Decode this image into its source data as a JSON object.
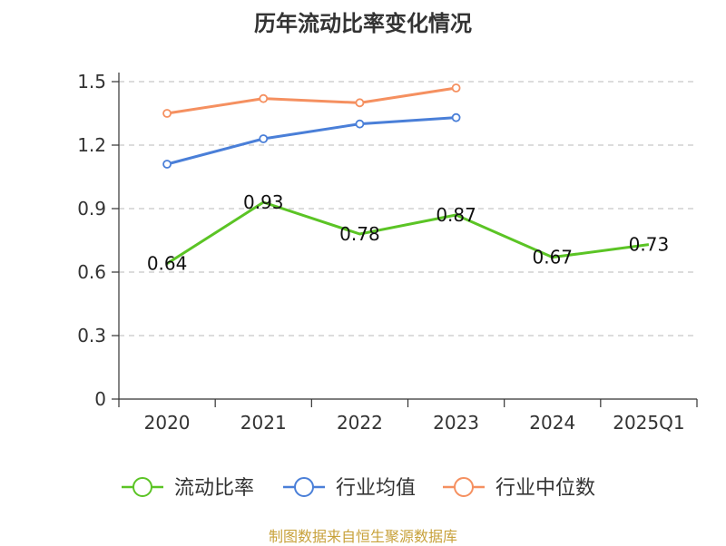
{
  "chart_data": {
    "type": "line",
    "title": "历年流动比率变化情况",
    "categories": [
      "2020",
      "2021",
      "2022",
      "2023",
      "2024",
      "2025Q1"
    ],
    "y_ticks": [
      "0",
      "0.3",
      "0.6",
      "0.9",
      "1.2",
      "1.5"
    ],
    "ylim": [
      0,
      1.5
    ],
    "grid": true,
    "legend_position": "bottom",
    "series": [
      {
        "name": "流动比率",
        "color": "#5bc425",
        "values": [
          0.64,
          0.93,
          0.78,
          0.87,
          0.67,
          0.73
        ],
        "labels": [
          "0.64",
          "0.93",
          "0.78",
          "0.87",
          "0.67",
          "0.73"
        ],
        "show_markers": false,
        "show_labels": true
      },
      {
        "name": "行业均值",
        "color": "#4a7fd8",
        "values": [
          1.11,
          1.23,
          1.3,
          1.33,
          null,
          null
        ],
        "show_markers": true,
        "show_labels": false
      },
      {
        "name": "行业中位数",
        "color": "#f59060",
        "values": [
          1.35,
          1.42,
          1.4,
          1.47,
          null,
          null
        ],
        "show_markers": true,
        "show_labels": false
      }
    ]
  },
  "source": "制图数据来自恒生聚源数据库"
}
